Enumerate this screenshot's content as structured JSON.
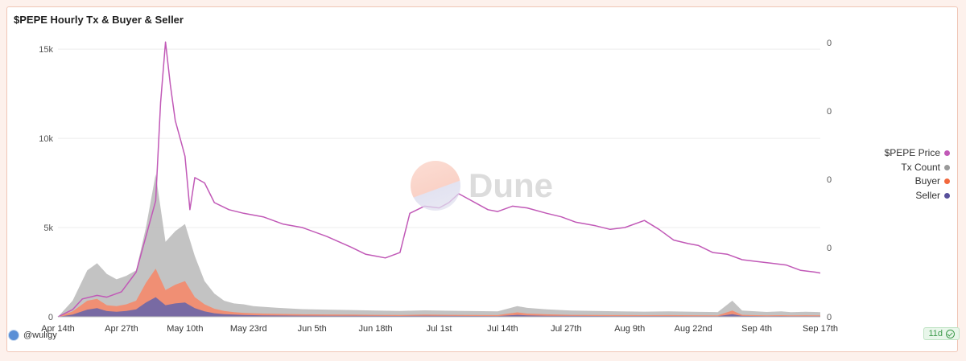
{
  "title": "$PEPE Hourly Tx & Buyer & Seller",
  "footer": {
    "user": "@wuligy",
    "age": "11d"
  },
  "watermark": "Dune",
  "colors": {
    "price": "#c159b7",
    "tx": "#b9b9b9",
    "buyer": "#f5896b",
    "seller": "#6a66a8"
  },
  "legend": [
    {
      "label": "$PEPE Price",
      "color": "#c159b7"
    },
    {
      "label": "Tx Count",
      "color": "#9a9a9a"
    },
    {
      "label": "Buyer",
      "color": "#f2683d"
    },
    {
      "label": "Seller",
      "color": "#58509b"
    }
  ],
  "chart_data": {
    "type": "area",
    "title": "$PEPE Hourly Tx & Buyer & Seller",
    "x_ticks": [
      "Apr 14th",
      "Apr 27th",
      "May 10th",
      "May 23rd",
      "Jun 5th",
      "Jun 18th",
      "Jul 1st",
      "Jul 14th",
      "Jul 27th",
      "Aug 9th",
      "Aug 22nd",
      "Sep 4th",
      "Sep 17th"
    ],
    "y_left_ticks": [
      "0",
      "5k",
      "10k",
      "15k"
    ],
    "y_left_range": [
      0,
      15500
    ],
    "y_right_ticks": [
      "0",
      "0",
      "0",
      "0",
      "0"
    ],
    "x_range_days": [
      0,
      156
    ],
    "series": [
      {
        "name": "Tx Count",
        "type": "area",
        "x": [
          0,
          3,
          6,
          8,
          10,
          12,
          14,
          16,
          18,
          20,
          22,
          24,
          26,
          28,
          30,
          32,
          34,
          36,
          38,
          40,
          42,
          45,
          50,
          55,
          60,
          65,
          70,
          75,
          80,
          85,
          90,
          94,
          96,
          100,
          105,
          110,
          115,
          120,
          125,
          130,
          135,
          138,
          140,
          145,
          148,
          150,
          153,
          156
        ],
        "y": [
          0,
          900,
          2600,
          3000,
          2400,
          2100,
          2300,
          2600,
          5000,
          8000,
          4200,
          4800,
          5200,
          3400,
          2000,
          1300,
          900,
          750,
          700,
          600,
          560,
          500,
          430,
          400,
          380,
          350,
          330,
          360,
          340,
          320,
          300,
          600,
          500,
          420,
          350,
          330,
          300,
          290,
          300,
          280,
          260,
          900,
          350,
          270,
          300,
          260,
          280,
          260
        ]
      },
      {
        "name": "Buyer",
        "type": "area",
        "x": [
          0,
          3,
          6,
          8,
          10,
          12,
          14,
          16,
          18,
          20,
          22,
          24,
          26,
          28,
          30,
          32,
          34,
          36,
          38,
          40,
          42,
          45,
          50,
          55,
          60,
          65,
          70,
          75,
          80,
          85,
          90,
          94,
          96,
          100,
          105,
          110,
          115,
          120,
          125,
          130,
          135,
          138,
          140,
          145,
          148,
          150,
          153,
          156
        ],
        "y": [
          0,
          300,
          900,
          1000,
          650,
          600,
          700,
          900,
          1900,
          2700,
          1500,
          1800,
          2000,
          1100,
          700,
          450,
          330,
          260,
          220,
          200,
          180,
          160,
          140,
          130,
          120,
          110,
          100,
          120,
          110,
          100,
          95,
          250,
          180,
          140,
          110,
          100,
          95,
          90,
          95,
          85,
          80,
          350,
          110,
          80,
          90,
          80,
          85,
          80
        ]
      },
      {
        "name": "Seller",
        "type": "area",
        "x": [
          0,
          3,
          6,
          8,
          10,
          12,
          14,
          16,
          18,
          20,
          22,
          24,
          26,
          28,
          30,
          32,
          34,
          36,
          38,
          40,
          42,
          45,
          50,
          55,
          60,
          65,
          70,
          75,
          80,
          85,
          90,
          94,
          96,
          100,
          105,
          110,
          115,
          120,
          125,
          130,
          135,
          138,
          140,
          145,
          148,
          150,
          153,
          156
        ],
        "y": [
          0,
          120,
          400,
          480,
          320,
          280,
          330,
          420,
          800,
          1100,
          650,
          750,
          800,
          480,
          300,
          200,
          150,
          120,
          100,
          90,
          80,
          70,
          65,
          60,
          55,
          50,
          45,
          55,
          50,
          45,
          42,
          110,
          80,
          60,
          50,
          45,
          42,
          40,
          42,
          38,
          35,
          150,
          50,
          35,
          40,
          35,
          38,
          35
        ]
      },
      {
        "name": "$PEPE Price",
        "type": "line",
        "x": [
          0,
          3,
          5,
          8,
          10,
          13,
          16,
          18,
          20,
          21,
          22,
          23,
          24,
          25,
          26,
          27,
          28,
          30,
          32,
          35,
          38,
          42,
          46,
          50,
          55,
          60,
          63,
          65,
          67,
          70,
          72,
          75,
          78,
          80,
          82,
          84,
          86,
          88,
          90,
          93,
          96,
          100,
          103,
          106,
          110,
          113,
          116,
          120,
          123,
          126,
          129,
          131,
          134,
          137,
          140,
          143,
          146,
          149,
          152,
          155,
          156
        ],
        "y": [
          0,
          400,
          1000,
          1200,
          1100,
          1400,
          2500,
          4500,
          6500,
          12000,
          15400,
          13000,
          11000,
          10000,
          9000,
          6000,
          7800,
          7500,
          6400,
          6000,
          5800,
          5600,
          5200,
          5000,
          4500,
          3900,
          3500,
          3400,
          3300,
          3600,
          5800,
          6200,
          6100,
          6400,
          6900,
          6600,
          6300,
          6000,
          5900,
          6200,
          6100,
          5800,
          5600,
          5300,
          5100,
          4900,
          5000,
          5400,
          4900,
          4300,
          4100,
          4000,
          3600,
          3500,
          3200,
          3100,
          3000,
          2900,
          2600,
          2500,
          2450
        ]
      }
    ],
    "legend_position": "right",
    "grid": true
  }
}
